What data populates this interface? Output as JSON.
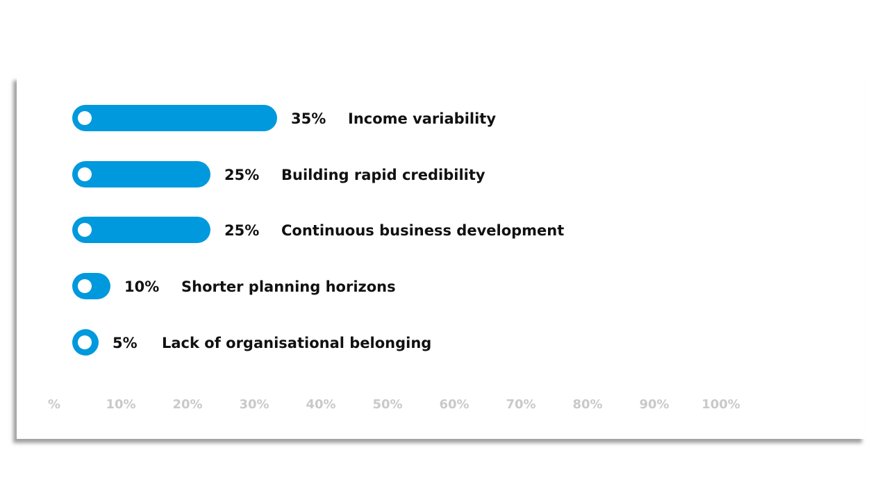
{
  "chart_data": {
    "type": "bar",
    "orientation": "horizontal",
    "categories": [
      "Income variability",
      "Building rapid credibility",
      "Continuous business development",
      "Shorter planning horizons",
      "Lack of organisational belonging"
    ],
    "values": [
      35,
      25,
      25,
      10,
      5
    ],
    "value_labels": [
      "35%",
      "25%",
      "25%",
      "10%",
      "5%"
    ],
    "x_ticks": [
      "%",
      "10%",
      "20%",
      "30%",
      "40%",
      "50%",
      "60%",
      "70%",
      "80%",
      "90%",
      "100%"
    ],
    "xlim": [
      0,
      100
    ],
    "grid": false,
    "legend": "none",
    "bar_color": "#0099dd",
    "knob_color": "#ffffff",
    "tick_color": "#c9c9c9"
  }
}
